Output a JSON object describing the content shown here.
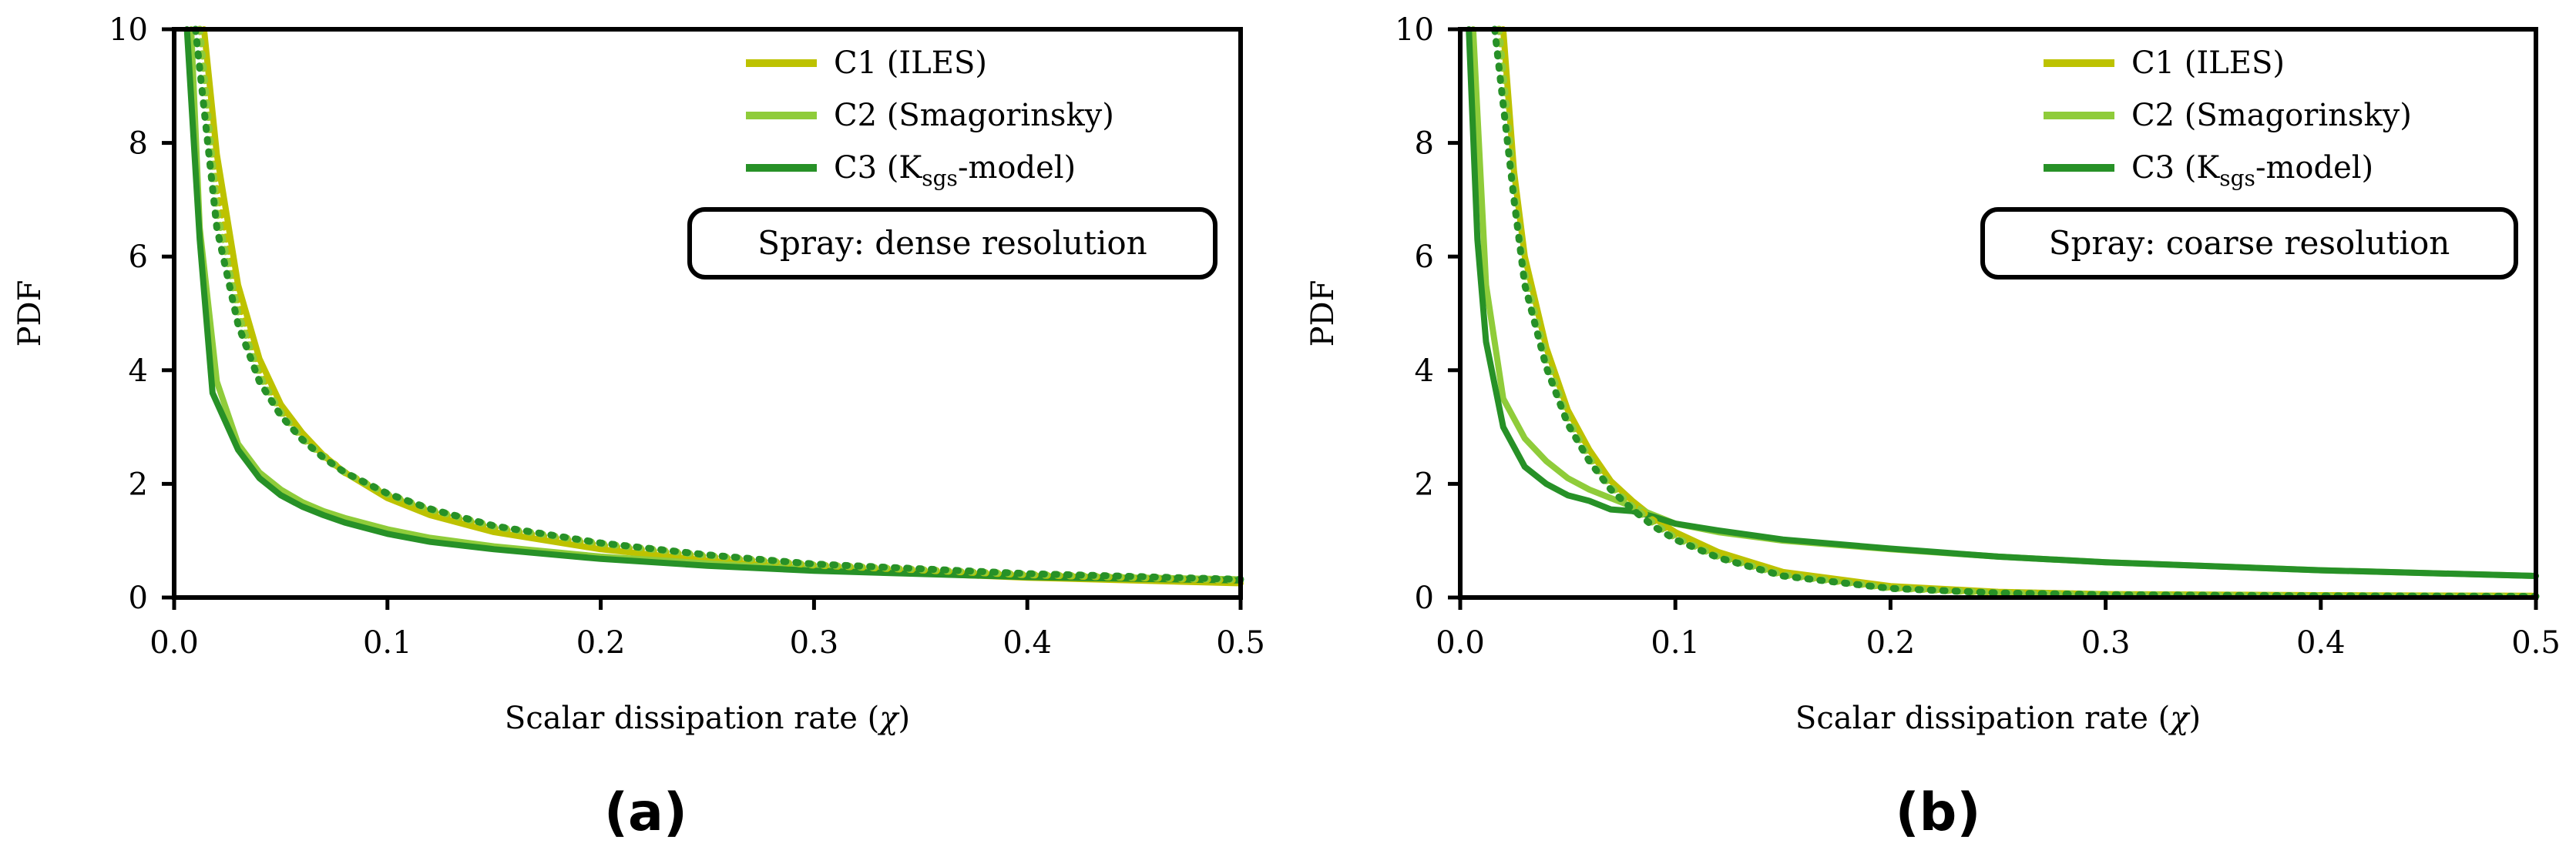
{
  "figure": {
    "panels": [
      {
        "id": "a",
        "panel_label": "(a)",
        "note": "Spray: dense resolution",
        "legend": [
          "C1 (ILES)",
          "C2 (Smagorinsky)",
          "C3 (Ksgs-model)"
        ]
      },
      {
        "id": "b",
        "panel_label": "(b)",
        "note": "Spray: coarse resolution",
        "legend": [
          "C1 (ILES)",
          "C2 (Smagorinsky)",
          "C3 (Ksgs-model)"
        ]
      }
    ]
  },
  "chart_data": [
    {
      "type": "line",
      "title": "",
      "panel_label": "(a)",
      "annotation": "Spray: dense resolution",
      "xlabel": "Scalar dissipation rate (χ)",
      "ylabel": "PDF",
      "xlim": [
        0,
        0.5
      ],
      "ylim": [
        0,
        10
      ],
      "xticks": [
        "0.0",
        "0.1",
        "0.2",
        "0.3",
        "0.4",
        "0.5"
      ],
      "yticks": [
        "0",
        "2",
        "4",
        "6",
        "8",
        "10"
      ],
      "grid": false,
      "legend_position": "top-right",
      "colors": {
        "C1": "#bdc200",
        "C2": "#8fcc3a",
        "C3": "#279127"
      },
      "series": [
        {
          "name": "C1 (ILES)",
          "style": "solid",
          "color": "#bdc200",
          "x": [
            0.014,
            0.02,
            0.03,
            0.04,
            0.05,
            0.06,
            0.07,
            0.08,
            0.1,
            0.12,
            0.15,
            0.2,
            0.25,
            0.3,
            0.4,
            0.5
          ],
          "y": [
            10,
            7.8,
            5.5,
            4.2,
            3.4,
            2.9,
            2.5,
            2.2,
            1.75,
            1.45,
            1.15,
            0.85,
            0.65,
            0.5,
            0.35,
            0.25
          ]
        },
        {
          "name": "C2 (Smagorinsky)",
          "style": "solid",
          "color": "#8fcc3a",
          "x": [
            0.008,
            0.012,
            0.02,
            0.03,
            0.04,
            0.05,
            0.06,
            0.07,
            0.08,
            0.1,
            0.12,
            0.15,
            0.2,
            0.25,
            0.3,
            0.4,
            0.5
          ],
          "y": [
            10,
            6.5,
            3.8,
            2.7,
            2.2,
            1.9,
            1.68,
            1.52,
            1.4,
            1.2,
            1.05,
            0.9,
            0.72,
            0.6,
            0.5,
            0.38,
            0.32
          ]
        },
        {
          "name": "C3 (Ksgs-model)",
          "style": "solid",
          "color": "#279127",
          "x": [
            0.006,
            0.012,
            0.018,
            0.03,
            0.04,
            0.05,
            0.06,
            0.07,
            0.08,
            0.1,
            0.12,
            0.15,
            0.2,
            0.25,
            0.3,
            0.4,
            0.5
          ],
          "y": [
            10,
            6.3,
            3.6,
            2.6,
            2.1,
            1.8,
            1.6,
            1.45,
            1.32,
            1.12,
            0.98,
            0.85,
            0.68,
            0.56,
            0.47,
            0.36,
            0.3
          ]
        },
        {
          "name": "C1 (ILES) (dotted)",
          "style": "dotted",
          "color": "#bdc200",
          "x": [
            0.012,
            0.02,
            0.03,
            0.04,
            0.05,
            0.06,
            0.07,
            0.08,
            0.1,
            0.12,
            0.15,
            0.2,
            0.25,
            0.3,
            0.4,
            0.5
          ],
          "y": [
            10,
            7.2,
            5.2,
            4.0,
            3.3,
            2.85,
            2.5,
            2.2,
            1.8,
            1.52,
            1.22,
            0.92,
            0.72,
            0.57,
            0.4,
            0.3
          ]
        },
        {
          "name": "C2 (Smagorinsky) (dotted)",
          "style": "dotted",
          "color": "#8fcc3a",
          "x": [
            0.012,
            0.02,
            0.03,
            0.04,
            0.05,
            0.06,
            0.07,
            0.08,
            0.1,
            0.12,
            0.15,
            0.2,
            0.25,
            0.3,
            0.4,
            0.5
          ],
          "y": [
            10,
            6.8,
            5.0,
            3.9,
            3.25,
            2.8,
            2.48,
            2.2,
            1.82,
            1.55,
            1.25,
            0.95,
            0.74,
            0.58,
            0.41,
            0.31
          ]
        },
        {
          "name": "C3 (Ksgs-model) (dotted)",
          "style": "dotted",
          "color": "#279127",
          "x": [
            0.01,
            0.02,
            0.03,
            0.04,
            0.05,
            0.06,
            0.07,
            0.08,
            0.1,
            0.12,
            0.15,
            0.2,
            0.25,
            0.3,
            0.4,
            0.5
          ],
          "y": [
            10,
            6.5,
            4.8,
            3.8,
            3.2,
            2.78,
            2.46,
            2.2,
            1.83,
            1.56,
            1.26,
            0.96,
            0.75,
            0.59,
            0.42,
            0.32
          ]
        }
      ]
    },
    {
      "type": "line",
      "title": "",
      "panel_label": "(b)",
      "annotation": "Spray: coarse resolution",
      "xlabel": "Scalar dissipation rate (χ)",
      "ylabel": "PDF",
      "xlim": [
        0,
        0.5
      ],
      "ylim": [
        0,
        10
      ],
      "xticks": [
        "0.0",
        "0.1",
        "0.2",
        "0.3",
        "0.4",
        "0.5"
      ],
      "yticks": [
        "0",
        "2",
        "4",
        "6",
        "8",
        "10"
      ],
      "grid": false,
      "legend_position": "top-right",
      "colors": {
        "C1": "#bdc200",
        "C2": "#8fcc3a",
        "C3": "#279127"
      },
      "series": [
        {
          "name": "C1 (ILES)",
          "style": "solid",
          "color": "#bdc200",
          "x": [
            0.02,
            0.025,
            0.03,
            0.04,
            0.05,
            0.06,
            0.07,
            0.08,
            0.09,
            0.1,
            0.12,
            0.15,
            0.2,
            0.25,
            0.3,
            0.4,
            0.5
          ],
          "y": [
            10,
            7.5,
            6.0,
            4.4,
            3.3,
            2.6,
            2.05,
            1.7,
            1.4,
            1.15,
            0.8,
            0.45,
            0.2,
            0.1,
            0.06,
            0.04,
            0.03
          ]
        },
        {
          "name": "C2 (Smagorinsky)",
          "style": "solid",
          "color": "#8fcc3a",
          "x": [
            0.006,
            0.012,
            0.02,
            0.03,
            0.04,
            0.05,
            0.06,
            0.07,
            0.08,
            0.09,
            0.1,
            0.12,
            0.15,
            0.2,
            0.25,
            0.3,
            0.4,
            0.5
          ],
          "y": [
            10,
            5.5,
            3.5,
            2.8,
            2.4,
            2.1,
            1.9,
            1.75,
            1.6,
            1.45,
            1.3,
            1.15,
            1.0,
            0.85,
            0.72,
            0.62,
            0.48,
            0.38
          ]
        },
        {
          "name": "C3 (Ksgs-model)",
          "style": "solid",
          "color": "#279127",
          "x": [
            0.004,
            0.008,
            0.012,
            0.02,
            0.03,
            0.04,
            0.05,
            0.06,
            0.07,
            0.08,
            0.09,
            0.1,
            0.12,
            0.15,
            0.2,
            0.25,
            0.3,
            0.4,
            0.5
          ],
          "y": [
            10,
            6.3,
            4.5,
            3.0,
            2.3,
            2.0,
            1.8,
            1.7,
            1.55,
            1.52,
            1.42,
            1.3,
            1.18,
            1.02,
            0.86,
            0.72,
            0.62,
            0.48,
            0.38
          ]
        },
        {
          "name": "C1 (ILES) (dotted)",
          "style": "dotted",
          "color": "#bdc200",
          "x": [
            0.018,
            0.025,
            0.03,
            0.04,
            0.05,
            0.06,
            0.07,
            0.08,
            0.09,
            0.1,
            0.12,
            0.15,
            0.2,
            0.25,
            0.3,
            0.4,
            0.5
          ],
          "y": [
            10,
            7.3,
            5.8,
            4.3,
            3.2,
            2.5,
            2.0,
            1.65,
            1.35,
            1.1,
            0.75,
            0.42,
            0.18,
            0.09,
            0.05,
            0.03,
            0.02
          ]
        },
        {
          "name": "C2 (Smagorinsky) (dotted)",
          "style": "dotted",
          "color": "#8fcc3a",
          "x": [
            0.018,
            0.025,
            0.03,
            0.04,
            0.05,
            0.06,
            0.07,
            0.08,
            0.09,
            0.1,
            0.12,
            0.15,
            0.2,
            0.25,
            0.3,
            0.4,
            0.5
          ],
          "y": [
            10,
            7.2,
            5.7,
            4.2,
            3.15,
            2.45,
            1.95,
            1.6,
            1.3,
            1.05,
            0.72,
            0.4,
            0.17,
            0.08,
            0.05,
            0.03,
            0.02
          ]
        },
        {
          "name": "C3 (Ksgs-model) (dotted)",
          "style": "dotted",
          "color": "#279127",
          "x": [
            0.016,
            0.025,
            0.03,
            0.04,
            0.05,
            0.06,
            0.07,
            0.08,
            0.09,
            0.1,
            0.12,
            0.15,
            0.2,
            0.25,
            0.3,
            0.4,
            0.5
          ],
          "y": [
            10,
            7.0,
            5.5,
            4.05,
            3.05,
            2.4,
            1.9,
            1.55,
            1.25,
            1.02,
            0.7,
            0.38,
            0.16,
            0.08,
            0.05,
            0.03,
            0.02
          ]
        }
      ]
    }
  ]
}
